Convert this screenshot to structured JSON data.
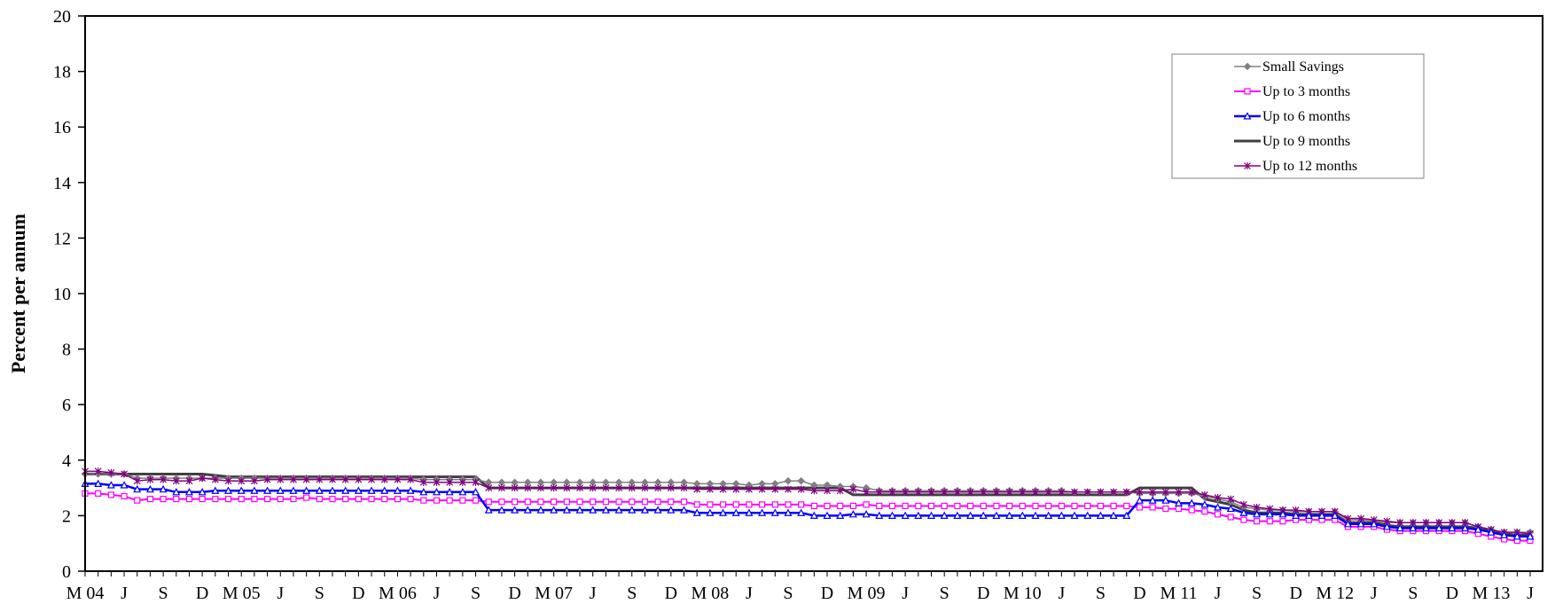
{
  "chart_data": {
    "type": "line",
    "ylabel": "Percent per annum",
    "ylim": [
      0,
      20
    ],
    "yticks": [
      "0",
      "2",
      "4",
      "6",
      "8",
      "10",
      "12",
      "14",
      "16",
      "18",
      "20"
    ],
    "x": [
      "Mar-04",
      "Apr-04",
      "May-04",
      "Jun-04",
      "Jul-04",
      "Aug-04",
      "Sep-04",
      "Oct-04",
      "Nov-04",
      "Dec-04",
      "Jan-05",
      "Feb-05",
      "Mar-05",
      "Apr-05",
      "May-05",
      "Jun-05",
      "Jul-05",
      "Aug-05",
      "Sep-05",
      "Oct-05",
      "Nov-05",
      "Dec-05",
      "Jan-06",
      "Feb-06",
      "Mar-06",
      "Apr-06",
      "May-06",
      "Jun-06",
      "Jul-06",
      "Aug-06",
      "Sep-06",
      "Oct-06",
      "Nov-06",
      "Dec-06",
      "Jan-07",
      "Feb-07",
      "Mar-07",
      "Apr-07",
      "May-07",
      "Jun-07",
      "Jul-07",
      "Aug-07",
      "Sep-07",
      "Oct-07",
      "Nov-07",
      "Dec-07",
      "Jan-08",
      "Feb-08",
      "Mar-08",
      "Apr-08",
      "May-08",
      "Jun-08",
      "Jul-08",
      "Aug-08",
      "Sep-08",
      "Oct-08",
      "Nov-08",
      "Dec-08",
      "Jan-09",
      "Feb-09",
      "Mar-09",
      "Apr-09",
      "May-09",
      "Jun-09",
      "Jul-09",
      "Aug-09",
      "Sep-09",
      "Oct-09",
      "Nov-09",
      "Dec-09",
      "Jan-10",
      "Feb-10",
      "Mar-10",
      "Apr-10",
      "May-10",
      "Jun-10",
      "Jul-10",
      "Aug-10",
      "Sep-10",
      "Oct-10",
      "Nov-10",
      "Dec-10",
      "Jan-11",
      "Feb-11",
      "Mar-11",
      "Apr-11",
      "May-11",
      "Jun-11",
      "Jul-11",
      "Aug-11",
      "Sep-11",
      "Oct-11",
      "Nov-11",
      "Dec-11",
      "Jan-12",
      "Feb-12",
      "Mar-12",
      "Apr-12",
      "May-12",
      "Jun-12",
      "Jul-12",
      "Aug-12",
      "Sep-12",
      "Oct-12",
      "Nov-12",
      "Dec-12",
      "Jan-13",
      "Feb-13",
      "Mar-13",
      "Apr-13",
      "May-13",
      "Jun-13"
    ],
    "xtick_labels": [
      {
        "i": 0,
        "label": "M 04"
      },
      {
        "i": 3,
        "label": "J"
      },
      {
        "i": 6,
        "label": "S"
      },
      {
        "i": 9,
        "label": "D"
      },
      {
        "i": 12,
        "label": "M 05"
      },
      {
        "i": 15,
        "label": "J"
      },
      {
        "i": 18,
        "label": "S"
      },
      {
        "i": 21,
        "label": "D"
      },
      {
        "i": 24,
        "label": "M 06"
      },
      {
        "i": 27,
        "label": "J"
      },
      {
        "i": 30,
        "label": "S"
      },
      {
        "i": 33,
        "label": "D"
      },
      {
        "i": 36,
        "label": "M 07"
      },
      {
        "i": 39,
        "label": "J"
      },
      {
        "i": 42,
        "label": "S"
      },
      {
        "i": 45,
        "label": "D"
      },
      {
        "i": 48,
        "label": "M 08"
      },
      {
        "i": 51,
        "label": "J"
      },
      {
        "i": 54,
        "label": "S"
      },
      {
        "i": 57,
        "label": "D"
      },
      {
        "i": 60,
        "label": "M 09"
      },
      {
        "i": 63,
        "label": "J"
      },
      {
        "i": 66,
        "label": "S"
      },
      {
        "i": 69,
        "label": "D"
      },
      {
        "i": 72,
        "label": "M 10"
      },
      {
        "i": 75,
        "label": "J"
      },
      {
        "i": 78,
        "label": "S"
      },
      {
        "i": 81,
        "label": "D"
      },
      {
        "i": 84,
        "label": "M 11"
      },
      {
        "i": 87,
        "label": "J"
      },
      {
        "i": 90,
        "label": "S"
      },
      {
        "i": 93,
        "label": "D"
      },
      {
        "i": 96,
        "label": "M 12"
      },
      {
        "i": 99,
        "label": "J"
      },
      {
        "i": 102,
        "label": "S"
      },
      {
        "i": 105,
        "label": "D"
      },
      {
        "i": 108,
        "label": "M 13"
      },
      {
        "i": 111,
        "label": "J"
      }
    ],
    "legend_position": "top-right",
    "grid": false,
    "series": [
      {
        "name": "Small Savings",
        "color": "#808080",
        "marker": "diamond",
        "values": [
          3.5,
          3.5,
          3.5,
          3.5,
          3.35,
          3.35,
          3.35,
          3.35,
          3.35,
          3.35,
          3.35,
          3.35,
          3.35,
          3.35,
          3.35,
          3.35,
          3.35,
          3.35,
          3.35,
          3.35,
          3.35,
          3.35,
          3.35,
          3.35,
          3.35,
          3.35,
          3.3,
          3.3,
          3.3,
          3.3,
          3.3,
          3.2,
          3.2,
          3.2,
          3.2,
          3.2,
          3.2,
          3.2,
          3.2,
          3.2,
          3.2,
          3.2,
          3.2,
          3.2,
          3.2,
          3.2,
          3.2,
          3.15,
          3.15,
          3.15,
          3.15,
          3.1,
          3.15,
          3.15,
          3.25,
          3.25,
          3.1,
          3.1,
          3.05,
          3.05,
          3.0,
          2.9,
          2.9,
          2.9,
          2.9,
          2.9,
          2.9,
          2.9,
          2.9,
          2.9,
          2.9,
          2.9,
          2.9,
          2.9,
          2.9,
          2.9,
          2.85,
          2.85,
          2.85,
          2.85,
          2.85,
          2.8,
          2.8,
          2.8,
          2.8,
          2.8,
          2.7,
          2.6,
          2.5,
          2.3,
          2.25,
          2.2,
          2.2,
          2.15,
          2.15,
          2.15,
          2.15,
          1.85,
          1.85,
          1.8,
          1.75,
          1.75,
          1.75,
          1.75,
          1.75,
          1.75,
          1.75,
          1.6,
          1.5,
          1.4,
          1.4,
          1.4
        ]
      },
      {
        "name": "Up to 3 months",
        "color": "#ff00ff",
        "marker": "square",
        "values": [
          2.8,
          2.8,
          2.75,
          2.7,
          2.55,
          2.6,
          2.6,
          2.6,
          2.6,
          2.6,
          2.6,
          2.6,
          2.6,
          2.6,
          2.6,
          2.6,
          2.6,
          2.65,
          2.6,
          2.6,
          2.6,
          2.6,
          2.6,
          2.6,
          2.6,
          2.6,
          2.55,
          2.55,
          2.55,
          2.55,
          2.55,
          2.5,
          2.5,
          2.5,
          2.5,
          2.5,
          2.5,
          2.5,
          2.5,
          2.5,
          2.5,
          2.5,
          2.5,
          2.5,
          2.5,
          2.5,
          2.5,
          2.4,
          2.4,
          2.4,
          2.4,
          2.4,
          2.4,
          2.4,
          2.4,
          2.4,
          2.35,
          2.35,
          2.35,
          2.35,
          2.4,
          2.35,
          2.35,
          2.35,
          2.35,
          2.35,
          2.35,
          2.35,
          2.35,
          2.35,
          2.35,
          2.35,
          2.35,
          2.35,
          2.35,
          2.35,
          2.35,
          2.35,
          2.35,
          2.35,
          2.35,
          2.3,
          2.3,
          2.25,
          2.25,
          2.2,
          2.15,
          2.05,
          1.95,
          1.85,
          1.8,
          1.8,
          1.8,
          1.85,
          1.85,
          1.85,
          1.85,
          1.6,
          1.6,
          1.6,
          1.5,
          1.45,
          1.45,
          1.45,
          1.45,
          1.45,
          1.45,
          1.35,
          1.25,
          1.15,
          1.1,
          1.1
        ]
      },
      {
        "name": "Up to 6 months",
        "color": "#0000ff",
        "marker": "triangle",
        "values": [
          3.15,
          3.15,
          3.1,
          3.1,
          2.95,
          2.95,
          2.95,
          2.85,
          2.85,
          2.85,
          2.9,
          2.9,
          2.9,
          2.9,
          2.9,
          2.9,
          2.9,
          2.9,
          2.9,
          2.9,
          2.9,
          2.9,
          2.9,
          2.9,
          2.9,
          2.9,
          2.85,
          2.85,
          2.85,
          2.85,
          2.85,
          2.2,
          2.2,
          2.2,
          2.2,
          2.2,
          2.2,
          2.2,
          2.2,
          2.2,
          2.2,
          2.2,
          2.2,
          2.2,
          2.2,
          2.2,
          2.2,
          2.1,
          2.1,
          2.1,
          2.1,
          2.1,
          2.1,
          2.1,
          2.1,
          2.1,
          2.0,
          2.0,
          2.0,
          2.05,
          2.05,
          2.0,
          2.0,
          2.0,
          2.0,
          2.0,
          2.0,
          2.0,
          2.0,
          2.0,
          2.0,
          2.0,
          2.0,
          2.0,
          2.0,
          2.0,
          2.0,
          2.0,
          2.0,
          2.0,
          2.0,
          2.55,
          2.55,
          2.55,
          2.45,
          2.45,
          2.4,
          2.3,
          2.25,
          2.1,
          2.05,
          2.05,
          2.05,
          2.0,
          2.0,
          2.0,
          2.0,
          1.7,
          1.7,
          1.7,
          1.6,
          1.55,
          1.55,
          1.55,
          1.55,
          1.55,
          1.55,
          1.5,
          1.4,
          1.3,
          1.25,
          1.25
        ]
      },
      {
        "name": "Up to 9 months",
        "color": "#404040",
        "marker": "none",
        "values": [
          3.5,
          3.5,
          3.5,
          3.5,
          3.5,
          3.5,
          3.5,
          3.5,
          3.5,
          3.5,
          3.45,
          3.4,
          3.4,
          3.4,
          3.4,
          3.4,
          3.4,
          3.4,
          3.4,
          3.4,
          3.4,
          3.4,
          3.4,
          3.4,
          3.4,
          3.4,
          3.4,
          3.4,
          3.4,
          3.4,
          3.4,
          3.0,
          3.0,
          3.0,
          3.0,
          3.0,
          3.0,
          3.0,
          3.0,
          3.0,
          3.0,
          3.0,
          3.0,
          3.0,
          3.0,
          3.0,
          3.0,
          3.0,
          3.0,
          3.0,
          3.0,
          3.0,
          3.0,
          3.0,
          3.0,
          3.0,
          3.0,
          3.0,
          3.0,
          2.75,
          2.75,
          2.75,
          2.75,
          2.75,
          2.75,
          2.75,
          2.75,
          2.75,
          2.75,
          2.75,
          2.75,
          2.75,
          2.75,
          2.75,
          2.75,
          2.75,
          2.75,
          2.75,
          2.75,
          2.75,
          2.75,
          3.0,
          3.0,
          3.0,
          3.0,
          3.0,
          2.6,
          2.5,
          2.4,
          2.2,
          2.1,
          2.1,
          2.1,
          2.05,
          2.05,
          2.05,
          2.05,
          1.75,
          1.75,
          1.75,
          1.65,
          1.6,
          1.6,
          1.6,
          1.6,
          1.6,
          1.6,
          1.55,
          1.45,
          1.35,
          1.3,
          1.3
        ]
      },
      {
        "name": "Up to 12 months",
        "color": "#800080",
        "marker": "asterisk",
        "values": [
          3.6,
          3.6,
          3.55,
          3.5,
          3.25,
          3.3,
          3.3,
          3.25,
          3.25,
          3.35,
          3.3,
          3.25,
          3.25,
          3.25,
          3.3,
          3.3,
          3.3,
          3.3,
          3.3,
          3.3,
          3.3,
          3.3,
          3.3,
          3.3,
          3.3,
          3.3,
          3.2,
          3.2,
          3.2,
          3.2,
          3.2,
          3.0,
          3.0,
          3.0,
          3.0,
          3.0,
          3.0,
          3.0,
          3.0,
          3.0,
          3.0,
          3.0,
          3.0,
          3.0,
          3.0,
          3.0,
          3.0,
          2.95,
          2.95,
          2.95,
          2.95,
          2.95,
          2.95,
          2.95,
          2.95,
          2.95,
          2.9,
          2.9,
          2.9,
          2.95,
          2.85,
          2.85,
          2.85,
          2.85,
          2.85,
          2.85,
          2.85,
          2.85,
          2.85,
          2.85,
          2.85,
          2.85,
          2.85,
          2.85,
          2.85,
          2.85,
          2.85,
          2.85,
          2.85,
          2.85,
          2.85,
          2.85,
          2.85,
          2.85,
          2.85,
          2.85,
          2.75,
          2.65,
          2.6,
          2.4,
          2.3,
          2.25,
          2.2,
          2.2,
          2.15,
          2.15,
          2.15,
          1.9,
          1.9,
          1.85,
          1.8,
          1.75,
          1.75,
          1.75,
          1.75,
          1.75,
          1.75,
          1.6,
          1.5,
          1.4,
          1.4,
          1.35
        ]
      }
    ]
  }
}
